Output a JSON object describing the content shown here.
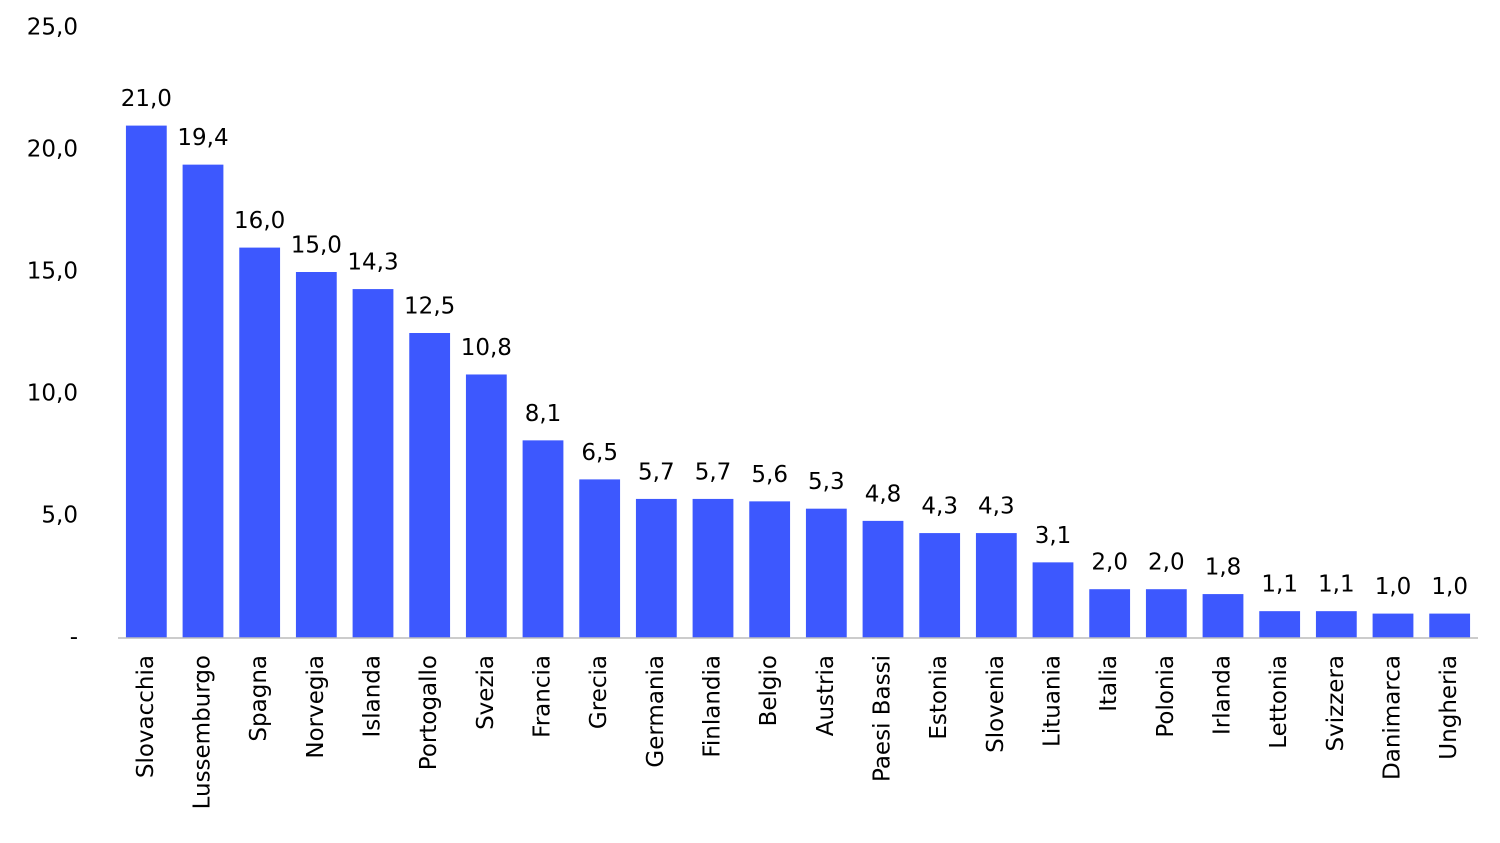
{
  "chart_data": {
    "type": "bar",
    "categories": [
      "Slovacchia",
      "Lussemburgo",
      "Spagna",
      "Norvegia",
      "Islanda",
      "Portogallo",
      "Svezia",
      "Francia",
      "Grecia",
      "Germania",
      "Finlandia",
      "Belgio",
      "Austria",
      "Paesi Bassi",
      "Estonia",
      "Slovenia",
      "Lituania",
      "Italia",
      "Polonia",
      "Irlanda",
      "Lettonia",
      "Svizzera",
      "Danimarca",
      "Ungheria"
    ],
    "values": [
      21.0,
      19.4,
      16.0,
      15.0,
      14.3,
      12.5,
      10.8,
      8.1,
      6.5,
      5.7,
      5.7,
      5.6,
      5.3,
      4.8,
      4.3,
      4.3,
      3.1,
      2.0,
      2.0,
      1.8,
      1.1,
      1.1,
      1.0,
      1.0
    ],
    "value_labels": [
      "21,0",
      "19,4",
      "16,0",
      "15,0",
      "14,3",
      "12,5",
      "10,8",
      "8,1",
      "6,5",
      "5,7",
      "5,7",
      "5,6",
      "5,3",
      "4,8",
      "4,3",
      "4,3",
      "3,1",
      "2,0",
      "2,0",
      "1,8",
      "1,1",
      "1,1",
      "1,0",
      "1,0"
    ],
    "color": "#3d58fe",
    "ylim": [
      0,
      25
    ],
    "yticks": [
      {
        "value": 0,
        "label": "-"
      },
      {
        "value": 5,
        "label": "5,0"
      },
      {
        "value": 10,
        "label": "10,0"
      },
      {
        "value": 15,
        "label": "15,0"
      },
      {
        "value": 20,
        "label": "20,0"
      },
      {
        "value": 25,
        "label": "25,0"
      }
    ],
    "grid": false
  }
}
